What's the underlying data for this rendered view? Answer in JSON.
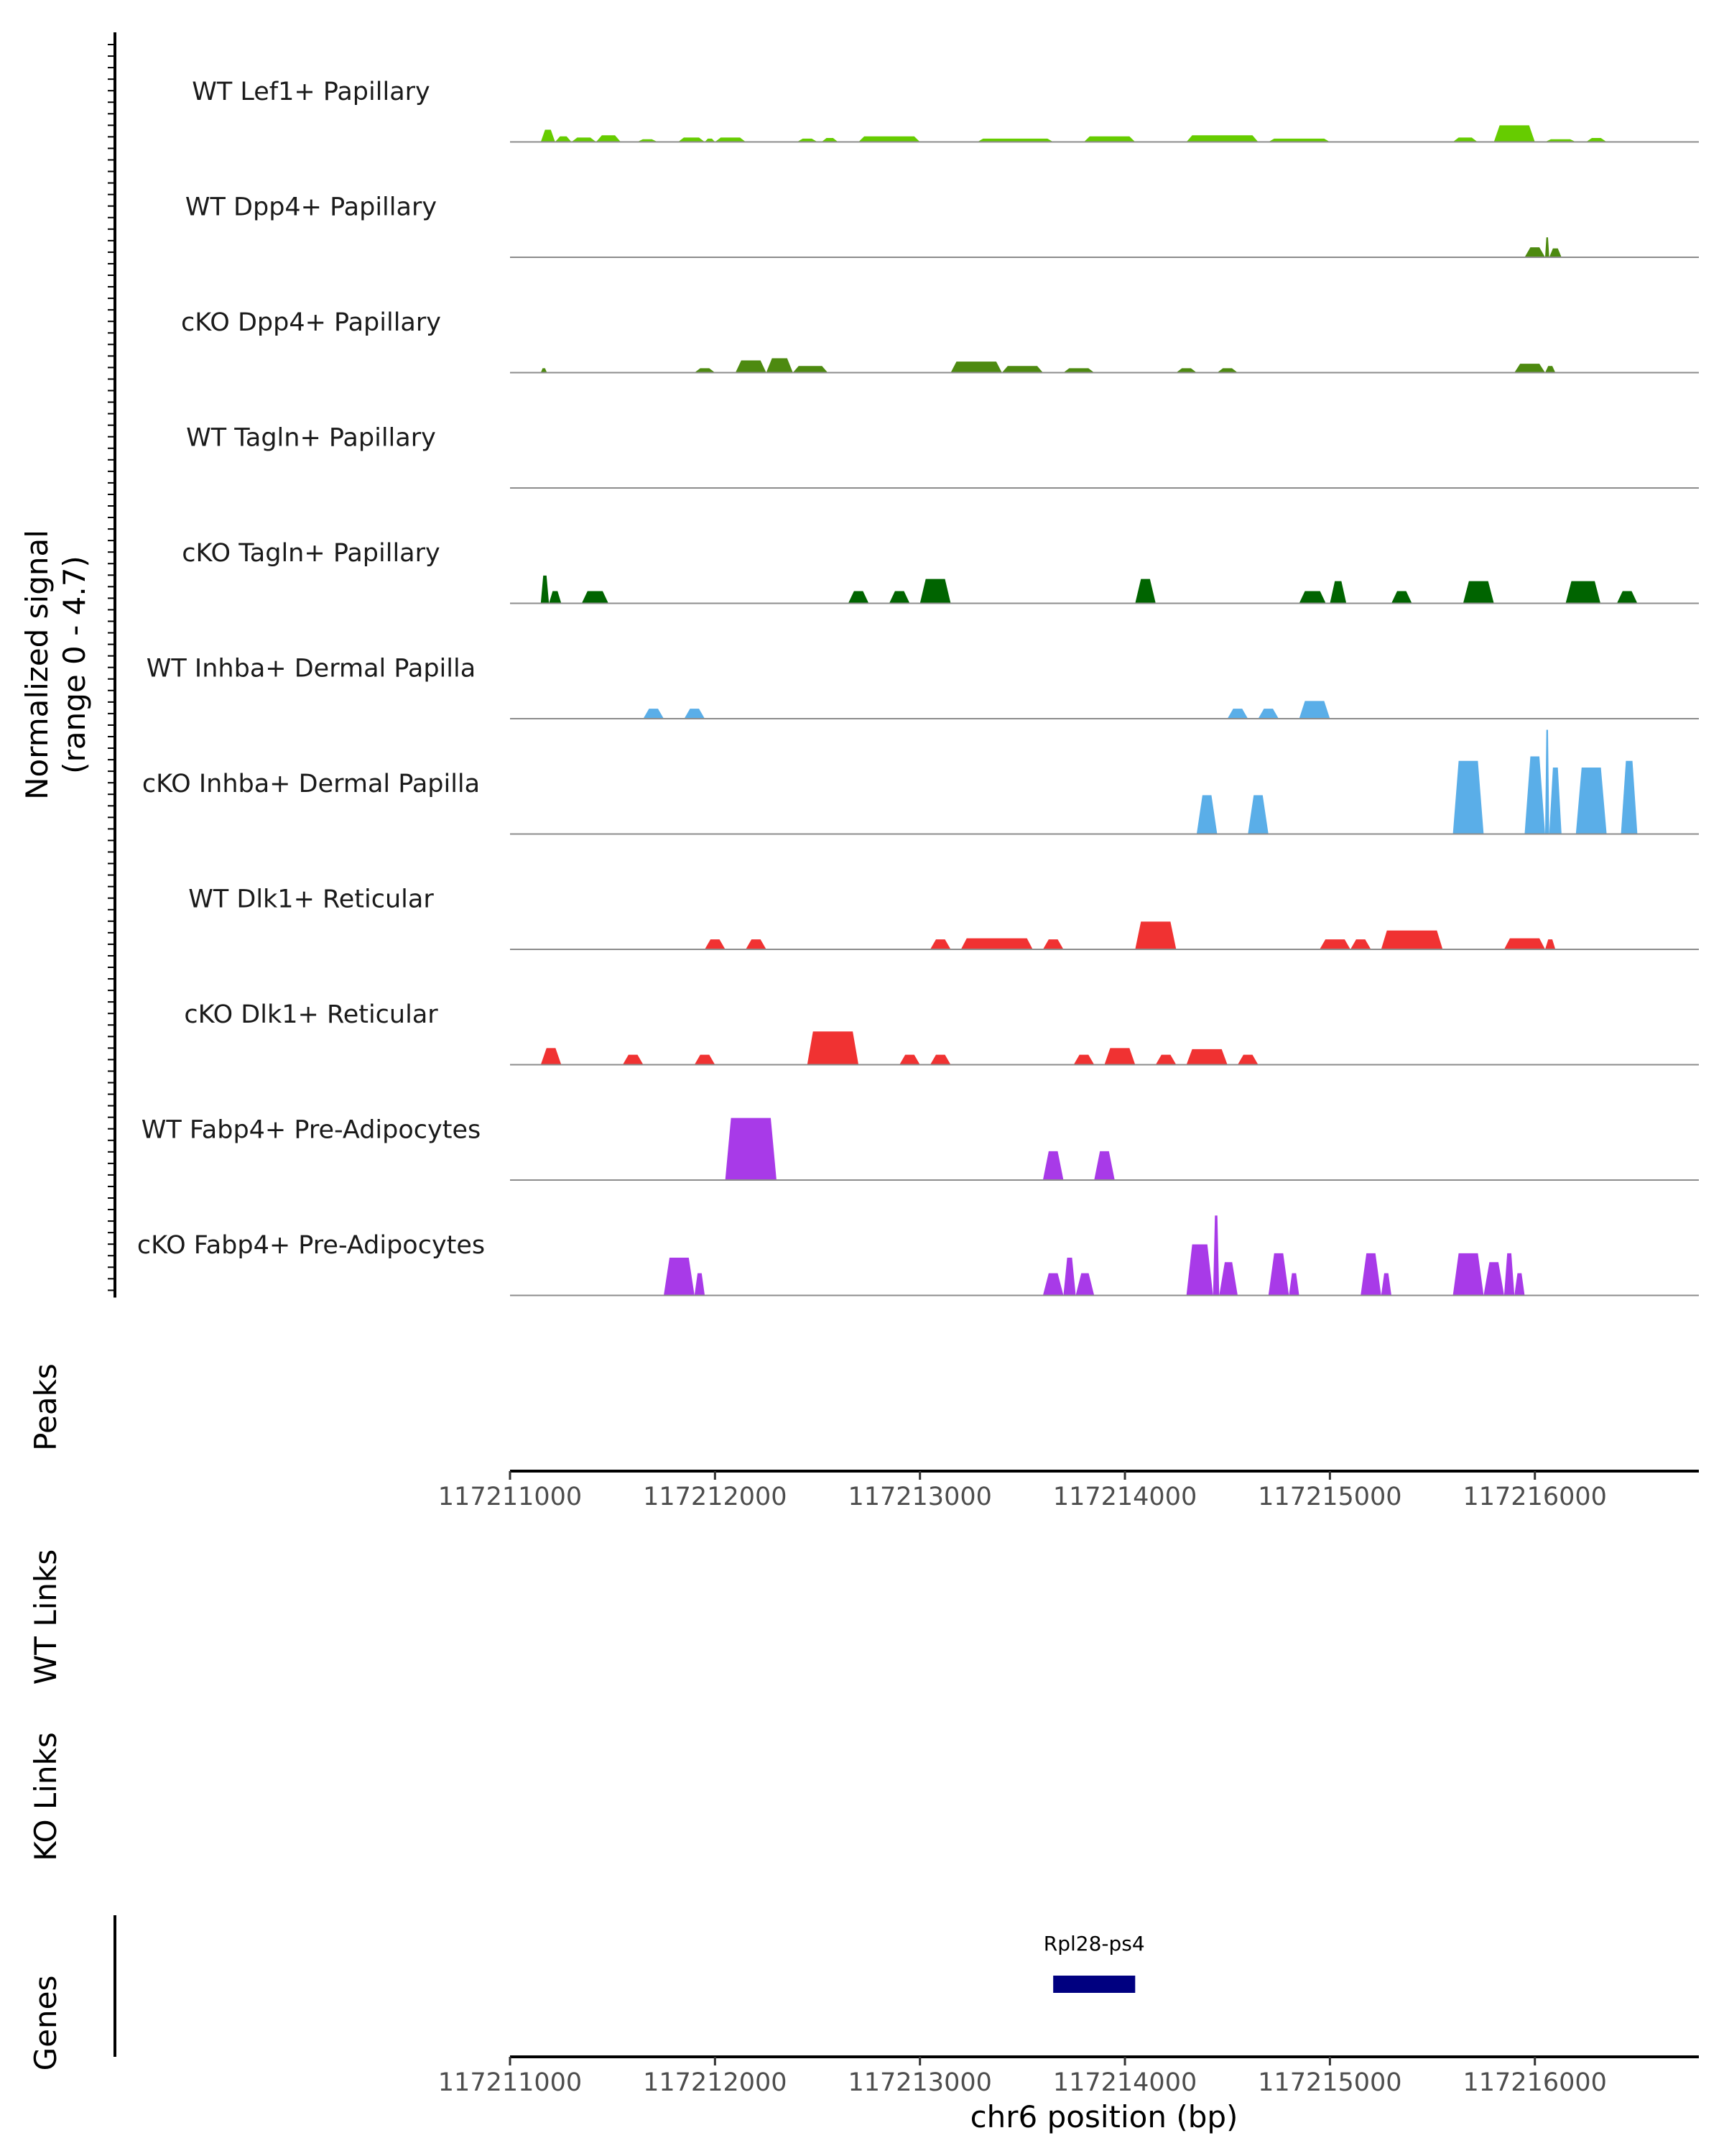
{
  "chart_data": {
    "type": "area",
    "title": "",
    "ylabel": "Normalized signal\n(range 0 - 4.7)",
    "ylim": [
      0,
      4.7
    ],
    "xlabel": "chr6 position (bp)",
    "xlim": [
      117211000,
      117216800
    ],
    "xticks": [
      117211000,
      117212000,
      117213000,
      117214000,
      117215000,
      117216000
    ],
    "xtick_labels": [
      "117211000",
      "117212000",
      "117213000",
      "117214000",
      "117215000",
      "117216000"
    ],
    "panel_labels": {
      "peaks": "Peaks",
      "wt_links": "WT Links",
      "ko_links": "KO Links",
      "genes": "Genes"
    },
    "genes": [
      {
        "name": "Rpl28-ps4",
        "start": 117213650,
        "end": 117214050,
        "color": "#000080"
      }
    ],
    "tracks": [
      {
        "name": "WT Lef1+ Papillary",
        "color": "#66cc00",
        "peaks": [
          [
            117211150,
            117211220,
            0.55
          ],
          [
            117211220,
            117211300,
            0.25
          ],
          [
            117211300,
            117211420,
            0.2
          ],
          [
            117211420,
            117211540,
            0.3
          ],
          [
            117211620,
            117211720,
            0.12
          ],
          [
            117211820,
            117211950,
            0.2
          ],
          [
            117211950,
            117212000,
            0.15
          ],
          [
            117212000,
            117212150,
            0.2
          ],
          [
            117212400,
            117212500,
            0.15
          ],
          [
            117212520,
            117212600,
            0.18
          ],
          [
            117212700,
            117213000,
            0.25
          ],
          [
            117213280,
            117213650,
            0.15
          ],
          [
            117213800,
            117214050,
            0.25
          ],
          [
            117214300,
            117214650,
            0.3
          ],
          [
            117214700,
            117215000,
            0.15
          ],
          [
            117215600,
            117215720,
            0.2
          ],
          [
            117215800,
            117216000,
            0.75
          ],
          [
            117216050,
            117216200,
            0.12
          ],
          [
            117216250,
            117216350,
            0.18
          ]
        ]
      },
      {
        "name": "WT Dpp4+ Papillary",
        "color": "#4d8a10",
        "peaks": [
          [
            117215950,
            117216050,
            0.45
          ],
          [
            117216050,
            117216070,
            0.9
          ],
          [
            117216070,
            117216130,
            0.4
          ]
        ]
      },
      {
        "name": "cKO Dpp4+ Papillary",
        "color": "#4d8a10",
        "peaks": [
          [
            117211150,
            117211180,
            0.2
          ],
          [
            117211900,
            117212000,
            0.2
          ],
          [
            117212100,
            117212250,
            0.55
          ],
          [
            117212250,
            117212380,
            0.65
          ],
          [
            117212380,
            117212550,
            0.3
          ],
          [
            117213150,
            117213400,
            0.5
          ],
          [
            117213400,
            117213600,
            0.3
          ],
          [
            117213700,
            117213850,
            0.2
          ],
          [
            117214250,
            117214350,
            0.2
          ],
          [
            117214450,
            117214550,
            0.2
          ],
          [
            117215900,
            117216050,
            0.4
          ],
          [
            117216050,
            117216100,
            0.3
          ]
        ]
      },
      {
        "name": "WT Tagln+ Papillary",
        "color": "#006400",
        "peaks": []
      },
      {
        "name": "cKO Tagln+ Papillary",
        "color": "#006400",
        "peaks": [
          [
            117211150,
            117211190,
            1.25
          ],
          [
            117211190,
            117211250,
            0.55
          ],
          [
            117211350,
            117211480,
            0.55
          ],
          [
            117212650,
            117212750,
            0.55
          ],
          [
            117212850,
            117212950,
            0.55
          ],
          [
            117213000,
            117213150,
            1.1
          ],
          [
            117214050,
            117214150,
            1.1
          ],
          [
            117214850,
            117214980,
            0.55
          ],
          [
            117215000,
            117215080,
            1.0
          ],
          [
            117215300,
            117215400,
            0.55
          ],
          [
            117215650,
            117215800,
            1.0
          ],
          [
            117216150,
            117216320,
            1.0
          ],
          [
            117216400,
            117216500,
            0.55
          ]
        ]
      },
      {
        "name": "WT Inhba+ Dermal Papilla",
        "color": "#5aaee8",
        "peaks": [
          [
            117211650,
            117211750,
            0.45
          ],
          [
            117211850,
            117211950,
            0.45
          ],
          [
            117214500,
            117214600,
            0.45
          ],
          [
            117214650,
            117214750,
            0.45
          ],
          [
            117214850,
            117215000,
            0.8
          ]
        ]
      },
      {
        "name": "cKO Inhba+ Dermal Papilla",
        "color": "#5aaee8",
        "peaks": [
          [
            117214350,
            117214450,
            1.75
          ],
          [
            117214600,
            117214700,
            1.75
          ],
          [
            117215600,
            117215750,
            3.3
          ],
          [
            117215950,
            117216050,
            3.5
          ],
          [
            117216050,
            117216070,
            4.7
          ],
          [
            117216070,
            117216130,
            3.0
          ],
          [
            117216200,
            117216350,
            3.0
          ],
          [
            117216420,
            117216500,
            3.3
          ]
        ]
      },
      {
        "name": "WT Dlk1+ Reticular",
        "color": "#f03232",
        "peaks": [
          [
            117211950,
            117212050,
            0.45
          ],
          [
            117212150,
            117212250,
            0.45
          ],
          [
            117213050,
            117213150,
            0.45
          ],
          [
            117213200,
            117213550,
            0.5
          ],
          [
            117213600,
            117213700,
            0.45
          ],
          [
            117214050,
            117214250,
            1.25
          ],
          [
            117214950,
            117215100,
            0.45
          ],
          [
            117215100,
            117215200,
            0.45
          ],
          [
            117215250,
            117215550,
            0.85
          ],
          [
            117215850,
            117216050,
            0.5
          ],
          [
            117216050,
            117216100,
            0.45
          ]
        ]
      },
      {
        "name": "cKO Dlk1+ Reticular",
        "color": "#f03232",
        "peaks": [
          [
            117211150,
            117211250,
            0.75
          ],
          [
            117211550,
            117211650,
            0.45
          ],
          [
            117211900,
            117212000,
            0.45
          ],
          [
            117212450,
            117212700,
            1.5
          ],
          [
            117212900,
            117213000,
            0.45
          ],
          [
            117213050,
            117213150,
            0.45
          ],
          [
            117213750,
            117213850,
            0.45
          ],
          [
            117213900,
            117214050,
            0.75
          ],
          [
            117214150,
            117214250,
            0.45
          ],
          [
            117214300,
            117214500,
            0.7
          ],
          [
            117214550,
            117214650,
            0.45
          ]
        ]
      },
      {
        "name": "WT Fabp4+ Pre-Adipocytes",
        "color": "#a83ae8",
        "peaks": [
          [
            117212050,
            117212300,
            2.8
          ],
          [
            117213600,
            117213700,
            1.3
          ],
          [
            117213850,
            117213950,
            1.3
          ]
        ]
      },
      {
        "name": "cKO Fabp4+ Pre-Adipocytes",
        "color": "#a83ae8",
        "peaks": [
          [
            117211750,
            117211900,
            1.7
          ],
          [
            117211900,
            117211950,
            1.0
          ],
          [
            117213600,
            117213700,
            1.0
          ],
          [
            117213700,
            117213760,
            1.7
          ],
          [
            117213760,
            117213850,
            1.0
          ],
          [
            117214300,
            117214430,
            2.3
          ],
          [
            117214430,
            117214460,
            3.6
          ],
          [
            117214460,
            117214550,
            1.5
          ],
          [
            117214700,
            117214800,
            1.9
          ],
          [
            117214800,
            117214850,
            1.0
          ],
          [
            117215150,
            117215250,
            1.9
          ],
          [
            117215250,
            117215300,
            1.0
          ],
          [
            117215600,
            117215750,
            1.9
          ],
          [
            117215750,
            117215850,
            1.5
          ],
          [
            117215850,
            117215900,
            1.9
          ],
          [
            117215900,
            117215950,
            1.0
          ]
        ]
      }
    ]
  }
}
